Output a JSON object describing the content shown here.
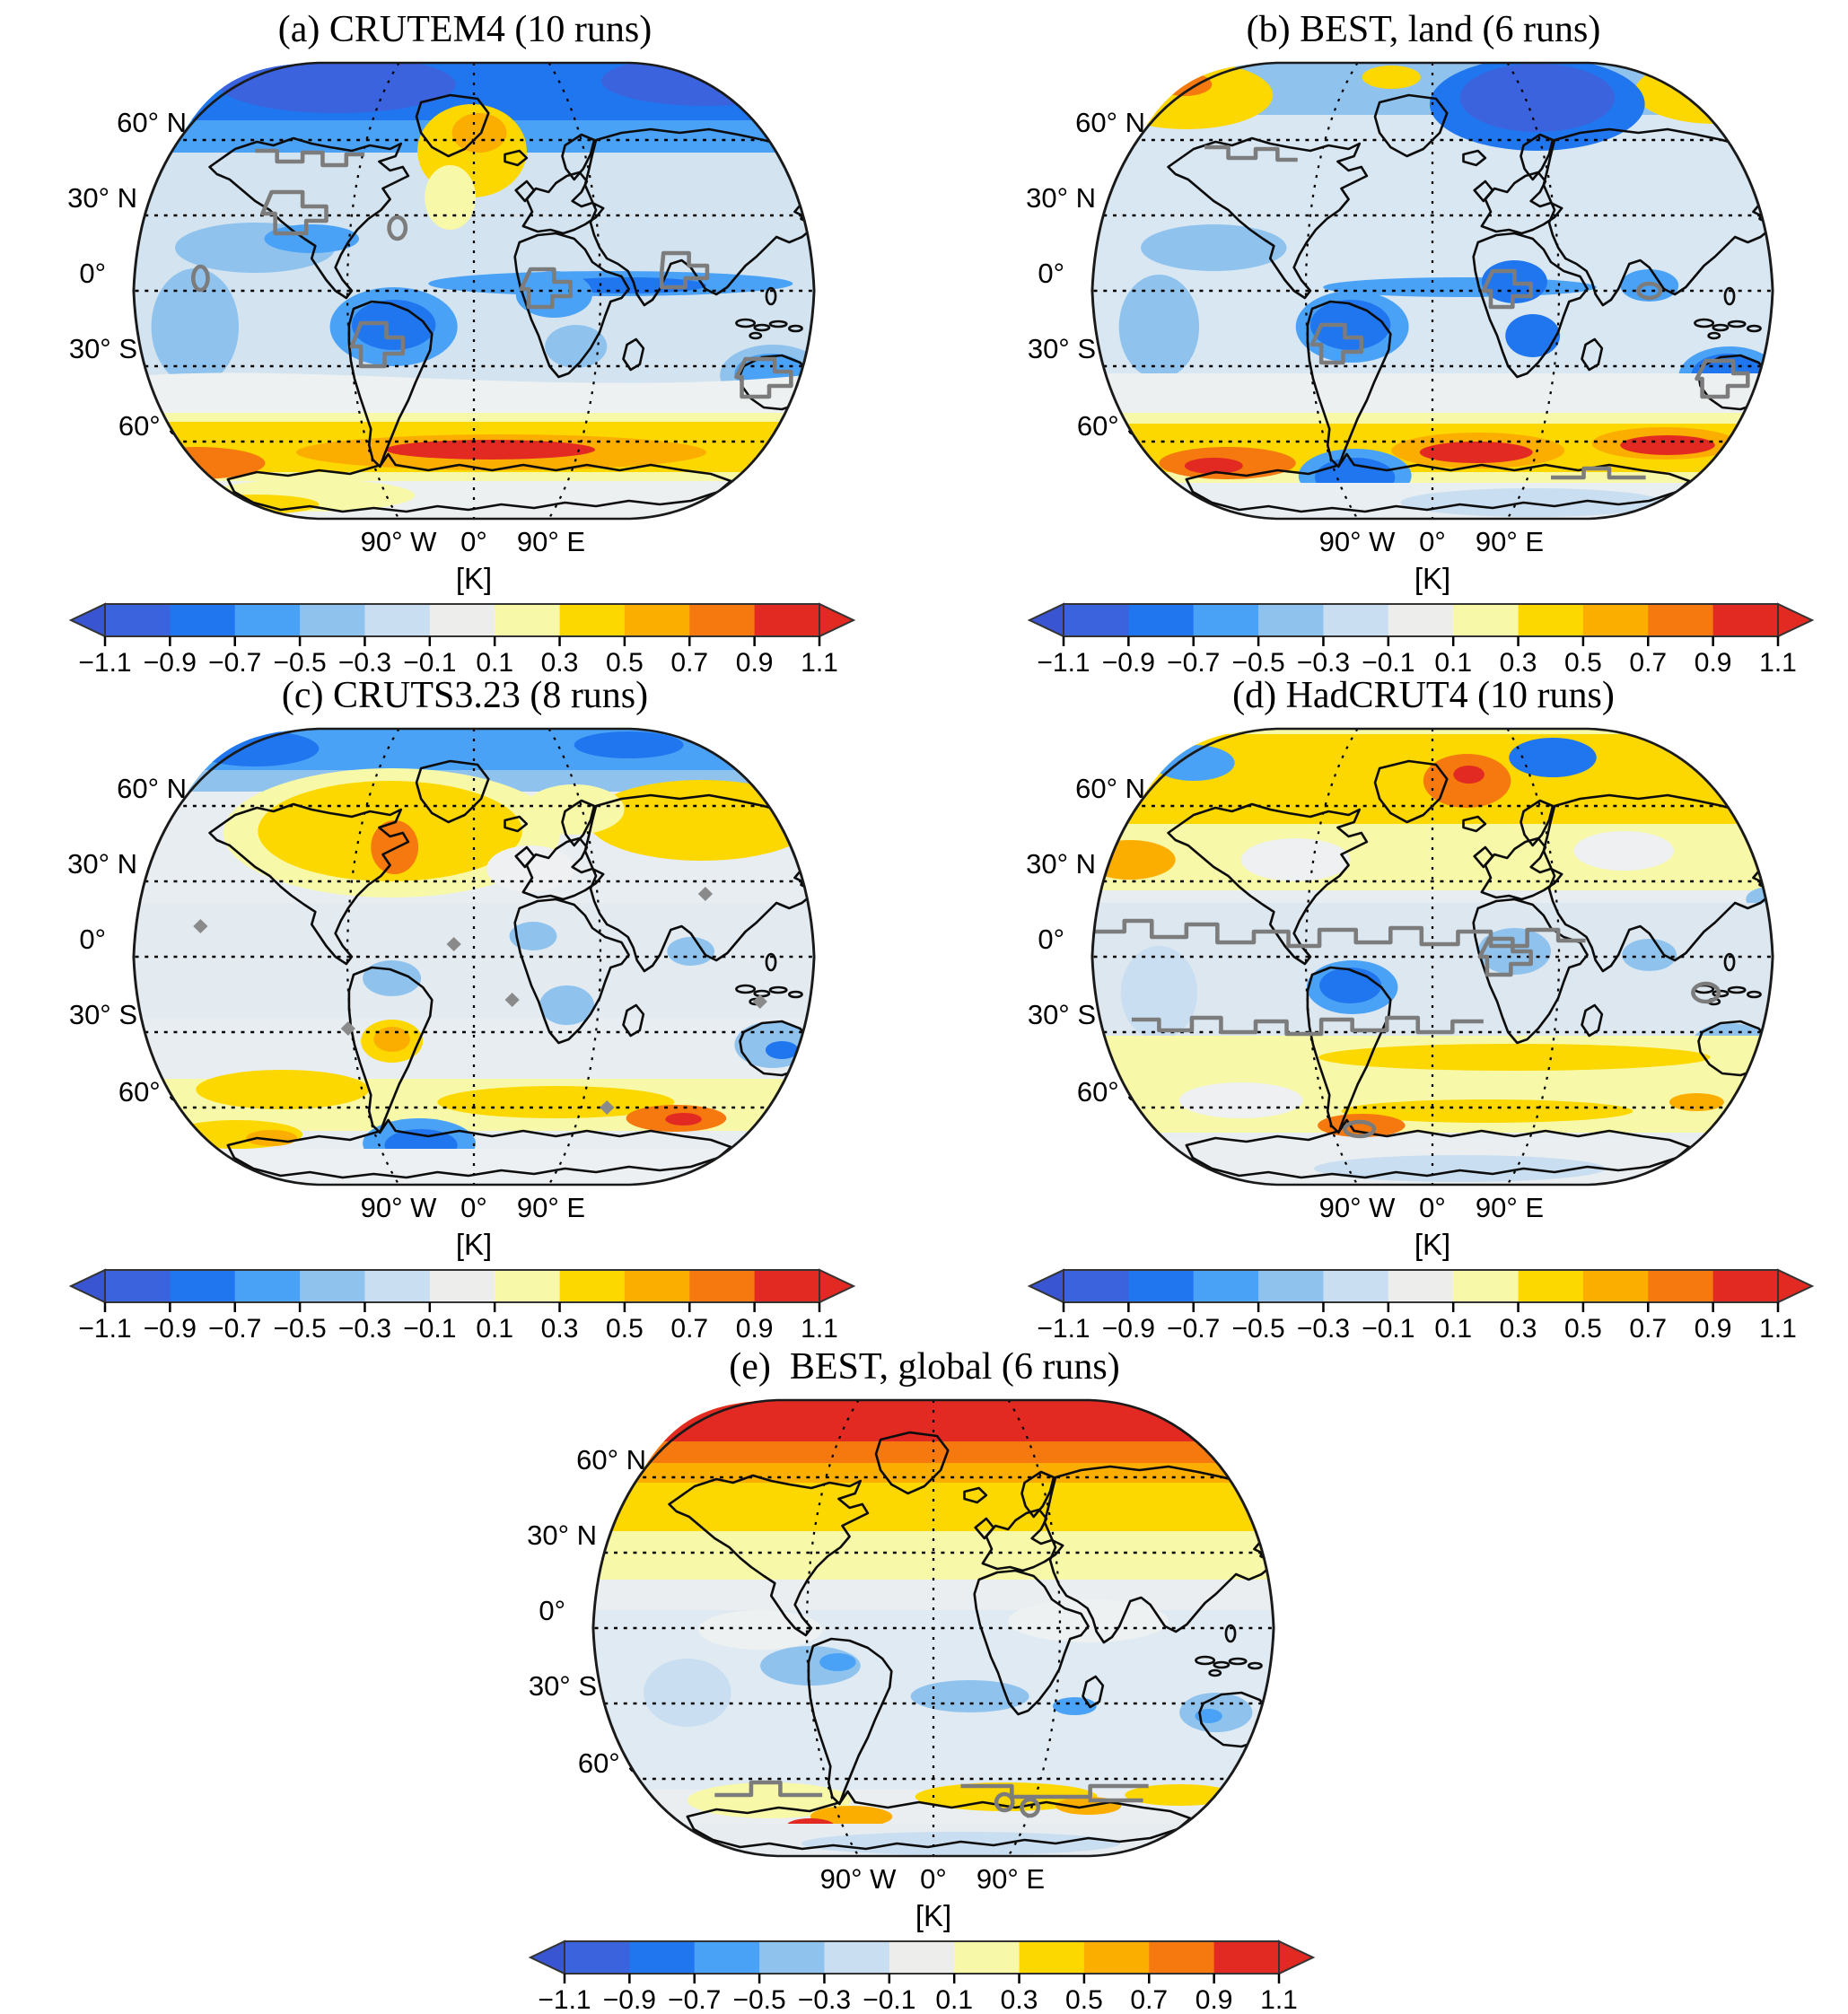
{
  "panels": [
    {
      "id": "a",
      "label": "(a)",
      "dataset": "CRUTEM4",
      "runs": 10,
      "title": "(a) CRUTEM4 (10 runs)"
    },
    {
      "id": "b",
      "label": "(b)",
      "dataset": "BEST, land",
      "runs": 6,
      "title": "(b) BEST, land (6 runs)"
    },
    {
      "id": "c",
      "label": "(c)",
      "dataset": "CRUTS3.23",
      "runs": 8,
      "title": "(c) CRUTS3.23 (8 runs)"
    },
    {
      "id": "d",
      "label": "(d)",
      "dataset": "HadCRUT4",
      "runs": 10,
      "title": "(d) HadCRUT4 (10 runs)"
    },
    {
      "id": "e",
      "label": "(e)",
      "dataset": "BEST, global",
      "runs": 6,
      "title": "(e)  BEST, global (6 runs)"
    }
  ],
  "axes": {
    "lat": [
      "60° N",
      "30° N",
      "0°",
      "30° S",
      "60° S"
    ],
    "lon": [
      "90° W",
      "0°",
      "90° E"
    ],
    "unit": "[K]"
  },
  "colorbar": {
    "unit": "[K]",
    "tick_labels": [
      "−1.1",
      "−0.9",
      "−0.7",
      "−0.5",
      "−0.3",
      "−0.1",
      "0.1",
      "0.3",
      "0.5",
      "0.7",
      "0.9",
      "1.1"
    ],
    "segment_colors": [
      "#3b63dd",
      "#2076ee",
      "#4aa2f7",
      "#8fc3ee",
      "#c9def0",
      "#ededec",
      "#f8f9a8",
      "#fcd700",
      "#fbae00",
      "#f5790e",
      "#e22a22"
    ],
    "arrow_left_color": "#3a55d2",
    "arrow_right_color": "#e22a22"
  },
  "chart_data": {
    "type": "heatmap",
    "subtype": "multi-panel global temperature anomaly maps (filled contours on Robinson-style projection)",
    "unit": "K",
    "scale_min": -1.1,
    "scale_max": 1.1,
    "scale_step": 0.2,
    "legend_position": "below each panel",
    "gridlines": {
      "latitudes_deg": [
        60,
        30,
        0,
        -30,
        -60
      ],
      "longitudes_deg": [
        -90,
        0,
        90
      ]
    },
    "panels": [
      {
        "id": "a",
        "dataset": "CRUTEM4",
        "runs": 10,
        "features": "cold (blue) Arctic band; weak cold anomalies over most oceans and tropical land; warm yellow-orange band with red core along ~60°S Southern Ocean; gray significance contours over continents"
      },
      {
        "id": "b",
        "dataset": "BEST, land",
        "runs": 6,
        "features": "warm patches over Alaska and east Siberia; strong cold (dark blue) cell near Barents Sea; cold anomalies over Amazon, central Africa, Australia; warm band near 60°S with two red cores and a blue cell south of South America"
      },
      {
        "id": "c",
        "dataset": "CRUTS3.23",
        "runs": 8,
        "features": "cold blue Arctic rim; warm yellow band over North America/North Atlantic with orange core near Newfoundland and over Siberia; pale cold tropics; warm patches in southern midlatitudes with orange core near 60°S east of center; blue cell near Antarctic Peninsula; small gray diamond markers"
      },
      {
        "id": "d",
        "dataset": "HadCRUT4",
        "runs": 10,
        "features": "broad warm yellow band across northern midlatitudes with orange-red core in Norwegian Sea; blue cells near Alaska and Scandinavia; pale cold tropics outlined by extensive gray significance contours over oceans; warm southern midlatitude band with orange cell south of South America"
      },
      {
        "id": "e",
        "dataset": "BEST, global",
        "runs": 6,
        "features": "strong red warm band across entire Arctic with orange-yellow bands to ~40°N; near-neutral whitish tropics with weak cold patches; weak cold southern midlatitudes; yellow-orange patches along Antarctic coast near 60°S with gray stepped contours"
      }
    ]
  }
}
